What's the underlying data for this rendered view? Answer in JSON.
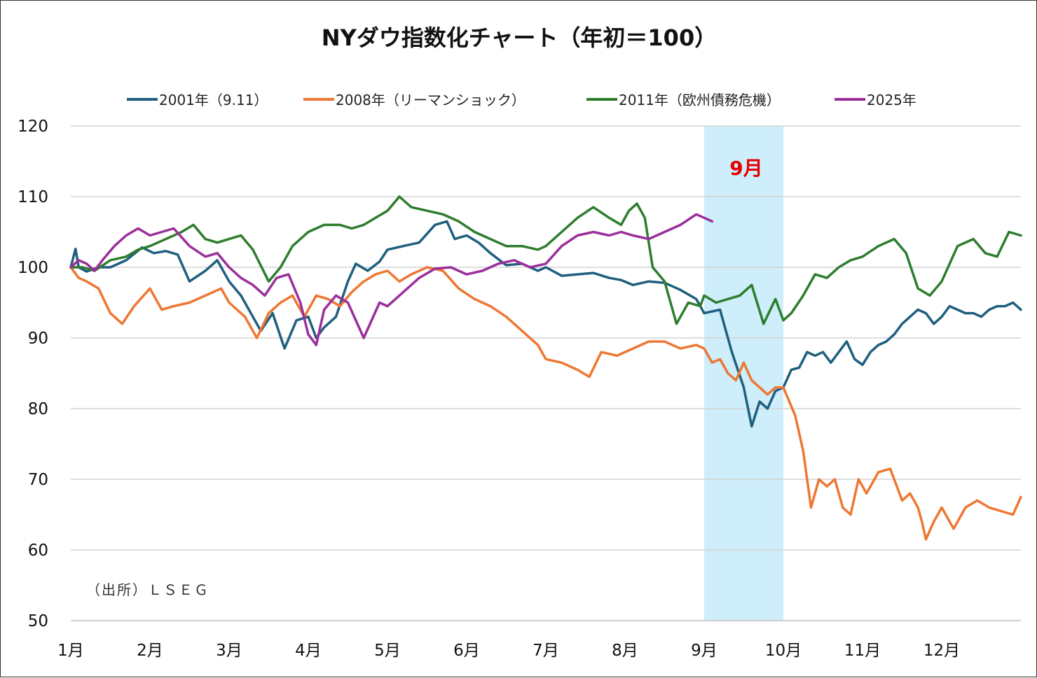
{
  "chart_data": {
    "type": "line",
    "title": "NYダウ指数化チャート（年初＝100）",
    "ylim": [
      50,
      120
    ],
    "yticks": [
      50,
      60,
      70,
      80,
      90,
      100,
      110,
      120
    ],
    "x_range": [
      1,
      13
    ],
    "month_labels": [
      "1月",
      "2月",
      "3月",
      "4月",
      "5月",
      "6月",
      "7月",
      "8月",
      "9月",
      "10月",
      "11月",
      "12月"
    ],
    "grid": true,
    "legend_position": "top",
    "highlight": {
      "label": "9月",
      "x_start": 9,
      "x_end": 10,
      "color": "#cdeefa",
      "label_color": "#e60000"
    },
    "source_note": "（出所）ＬＳＥＧ",
    "series": [
      {
        "name": "2001年（9.11）",
        "color": "#1f5f7f",
        "x": [
          1.0,
          1.06,
          1.1,
          1.2,
          1.35,
          1.5,
          1.7,
          1.9,
          2.05,
          2.2,
          2.35,
          2.5,
          2.7,
          2.85,
          3.0,
          3.15,
          3.3,
          3.4,
          3.55,
          3.7,
          3.85,
          4.0,
          4.1,
          4.2,
          4.35,
          4.5,
          4.6,
          4.75,
          4.9,
          5.0,
          5.2,
          5.4,
          5.6,
          5.75,
          5.85,
          6.0,
          6.15,
          6.3,
          6.5,
          6.7,
          6.9,
          7.0,
          7.2,
          7.4,
          7.6,
          7.8,
          7.95,
          8.1,
          8.3,
          8.5,
          8.7,
          8.9,
          9.0,
          9.2,
          9.35,
          9.5,
          9.6,
          9.7,
          9.8,
          9.9,
          10.0,
          10.1,
          10.2,
          10.3,
          10.4,
          10.5,
          10.6,
          10.7,
          10.8,
          10.9,
          11.0,
          11.1,
          11.2,
          11.3,
          11.4,
          11.5,
          11.6,
          11.7,
          11.8,
          11.9,
          12.0,
          12.1,
          12.2,
          12.3,
          12.4,
          12.5,
          12.6,
          12.7,
          12.8,
          12.9,
          13.0
        ],
        "y": [
          100,
          102.6,
          100,
          99.4,
          100,
          100,
          101,
          102.8,
          102,
          102.3,
          101.8,
          98,
          99.5,
          101,
          98,
          96,
          93,
          91,
          93.5,
          88.5,
          92.5,
          93,
          90,
          91.5,
          93,
          98,
          100.5,
          99.5,
          100.8,
          102.5,
          103,
          103.5,
          106,
          106.5,
          104,
          104.5,
          103.5,
          102,
          100.3,
          100.5,
          99.5,
          100,
          98.8,
          99,
          99.2,
          98.5,
          98.2,
          97.5,
          98,
          97.8,
          96.8,
          95.5,
          93.5,
          94,
          88,
          83,
          77.5,
          81,
          80,
          82.5,
          83,
          85.5,
          85.8,
          88,
          87.5,
          88,
          86.5,
          88,
          89.5,
          87,
          86.2,
          88,
          89,
          89.5,
          90.5,
          92,
          93,
          94,
          93.5,
          92,
          93,
          94.5,
          94,
          93.5,
          93.5,
          93,
          94,
          94.5,
          94.5,
          95,
          94
        ]
      },
      {
        "name": "2008年（リーマンショック）",
        "color": "#ee7733",
        "x": [
          1.0,
          1.1,
          1.2,
          1.35,
          1.5,
          1.65,
          1.8,
          2.0,
          2.15,
          2.3,
          2.5,
          2.7,
          2.9,
          3.0,
          3.2,
          3.35,
          3.5,
          3.65,
          3.8,
          3.95,
          4.1,
          4.25,
          4.4,
          4.55,
          4.7,
          4.85,
          5.0,
          5.15,
          5.3,
          5.5,
          5.7,
          5.9,
          6.1,
          6.3,
          6.5,
          6.7,
          6.9,
          7.0,
          7.2,
          7.4,
          7.55,
          7.7,
          7.9,
          8.1,
          8.3,
          8.5,
          8.7,
          8.9,
          9.0,
          9.1,
          9.2,
          9.3,
          9.4,
          9.5,
          9.6,
          9.7,
          9.8,
          9.9,
          10.0,
          10.15,
          10.25,
          10.35,
          10.45,
          10.55,
          10.65,
          10.75,
          10.85,
          10.95,
          11.05,
          11.2,
          11.35,
          11.5,
          11.6,
          11.7,
          11.75,
          11.8,
          11.9,
          12.0,
          12.15,
          12.3,
          12.45,
          12.6,
          12.75,
          12.9,
          13.0
        ],
        "y": [
          100,
          98.5,
          98,
          97,
          93.5,
          92,
          94.5,
          97,
          94,
          94.5,
          95,
          96,
          97,
          95,
          93,
          90,
          93.5,
          95,
          96,
          93,
          96,
          95.5,
          94.5,
          96.5,
          98,
          99,
          99.5,
          98,
          99,
          100,
          99.5,
          97,
          95.5,
          94.5,
          93,
          91,
          89,
          87,
          86.5,
          85.5,
          84.5,
          88,
          87.5,
          88.5,
          89.5,
          89.5,
          88.5,
          89,
          88.5,
          86.5,
          87,
          85,
          84,
          86.5,
          84,
          83,
          82,
          83,
          83,
          79,
          74,
          66,
          70,
          69,
          70,
          66,
          65,
          70,
          68,
          71,
          71.5,
          67,
          68,
          66,
          64,
          61.5,
          64,
          66,
          63,
          66,
          67,
          66,
          65.5,
          65,
          67.5
        ]
      },
      {
        "name": "2011年（欧州債務危機）",
        "color": "#2e7d2e",
        "x": [
          1.0,
          1.15,
          1.3,
          1.5,
          1.7,
          1.85,
          2.0,
          2.2,
          2.4,
          2.55,
          2.7,
          2.85,
          3.0,
          3.15,
          3.3,
          3.5,
          3.65,
          3.8,
          4.0,
          4.2,
          4.4,
          4.55,
          4.7,
          4.85,
          5.0,
          5.15,
          5.3,
          5.5,
          5.7,
          5.9,
          6.1,
          6.3,
          6.5,
          6.7,
          6.9,
          7.0,
          7.2,
          7.4,
          7.6,
          7.8,
          7.95,
          8.05,
          8.15,
          8.25,
          8.35,
          8.5,
          8.65,
          8.8,
          8.95,
          9.0,
          9.15,
          9.3,
          9.45,
          9.6,
          9.75,
          9.9,
          10.0,
          10.1,
          10.25,
          10.4,
          10.55,
          10.7,
          10.85,
          11.0,
          11.2,
          11.4,
          11.55,
          11.7,
          11.85,
          12.0,
          12.2,
          12.4,
          12.55,
          12.7,
          12.85,
          13.0
        ],
        "y": [
          100,
          100,
          99.5,
          101,
          101.5,
          102.5,
          103,
          104,
          105,
          106,
          104,
          103.5,
          104,
          104.5,
          102.5,
          98,
          100,
          103,
          105,
          106,
          106,
          105.5,
          106,
          107,
          108,
          110,
          108.5,
          108,
          107.5,
          106.5,
          105,
          104,
          103,
          103,
          102.5,
          103,
          105,
          107,
          108.5,
          107,
          106,
          108,
          109,
          107,
          100,
          98,
          92,
          95,
          94.5,
          96,
          95,
          95.5,
          96,
          97.5,
          92,
          95.5,
          92.5,
          93.5,
          96,
          99,
          98.5,
          100,
          101,
          101.5,
          103,
          104,
          102,
          97,
          96,
          98,
          103,
          104,
          102,
          101.5,
          105,
          104.5
        ]
      },
      {
        "name": "2025年",
        "color": "#9b2f9b",
        "x": [
          1.0,
          1.1,
          1.2,
          1.3,
          1.4,
          1.55,
          1.7,
          1.85,
          2.0,
          2.15,
          2.3,
          2.5,
          2.7,
          2.85,
          3.0,
          3.15,
          3.3,
          3.45,
          3.6,
          3.75,
          3.9,
          4.0,
          4.1,
          4.2,
          4.35,
          4.5,
          4.7,
          4.9,
          5.0,
          5.2,
          5.4,
          5.6,
          5.8,
          6.0,
          6.2,
          6.4,
          6.6,
          6.8,
          7.0,
          7.2,
          7.4,
          7.6,
          7.8,
          7.95,
          8.1,
          8.3,
          8.5,
          8.7,
          8.9,
          9.0,
          9.1
        ],
        "y": [
          100,
          101,
          100.5,
          99.5,
          101,
          103,
          104.5,
          105.5,
          104.5,
          105,
          105.5,
          103,
          101.5,
          102,
          100,
          98.5,
          97.5,
          96,
          98.5,
          99,
          95,
          90.5,
          89,
          94,
          96,
          95,
          90,
          95,
          94.5,
          96.5,
          98.5,
          99.8,
          100,
          99,
          99.5,
          100.5,
          101,
          100,
          100.5,
          103,
          104.5,
          105,
          104.5,
          105,
          104.5,
          104,
          105,
          106,
          107.5,
          107,
          106.5
        ]
      }
    ]
  }
}
